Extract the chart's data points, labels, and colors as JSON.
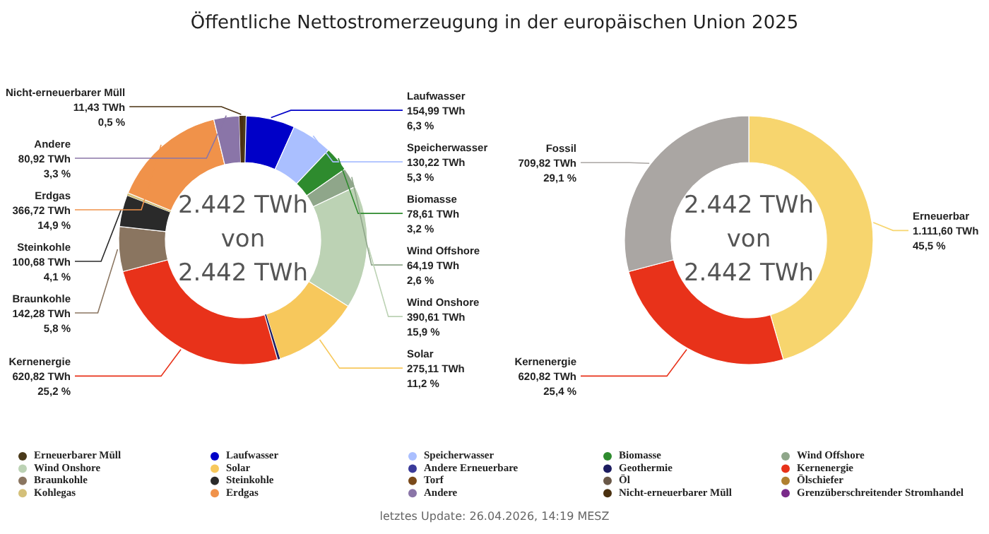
{
  "chart_data": [
    {
      "type": "donut",
      "title": "Öffentliche Nettostromerzeugung in der europäischen Union 2025",
      "categories": [
        "Erneuerbarer Müll",
        "Laufwasser",
        "Speicherwasser",
        "Biomasse",
        "Wind Offshore",
        "Wind Onshore",
        "Solar",
        "Andere Erneuerbare",
        "Geothermie",
        "Kernenergie",
        "Braunkohle",
        "Steinkohle",
        "Torf",
        "Öl",
        "Ölschiefer",
        "Kohlegas",
        "Erdgas",
        "Andere",
        "Nicht-erneuerbarer Müll",
        "Grenzüberschreitender Stromhandel"
      ],
      "values": [
        10,
        154.99,
        130.22,
        78.61,
        64.19,
        390.61,
        275.11,
        null,
        7.9,
        620.82,
        142.28,
        100.68,
        null,
        null,
        null,
        7.8,
        366.72,
        80.92,
        11.43,
        null
      ],
      "colors": [
        "#4a3a1a",
        "#0000c8",
        "#aabfff",
        "#2e8b2e",
        "#8fa68a",
        "#bcd2b4",
        "#f7c85c",
        "#3a3a9a",
        "#1c1c60",
        "#e8321a",
        "#8a7560",
        "#2a2a2a",
        "#7a4a1a",
        "#6a5848",
        "#b08030",
        "#d4c07a",
        "#f0924a",
        "#8a75a8",
        "#4a3010",
        "#7a2a8a"
      ],
      "value_labels": [
        null,
        "154,99 TWh\n6,3 %",
        "130,22 TWh\n5,3 %",
        "78,61 TWh\n3,2 %",
        "64,19 TWh\n2,6 %",
        "390,61 TWh\n15,9 %",
        "275,11 TWh\n11,2 %",
        null,
        null,
        "620,82 TWh\n25,2 %",
        "142,28 TWh\n5,8 %",
        "100,68 TWh\n4,1 %",
        null,
        null,
        null,
        null,
        "366,72 TWh\n14,9 %",
        "80,92 TWh\n3,3 %",
        "11,43 TWh\n0,5 %",
        null
      ],
      "annotations": [
        "2.442 TWh",
        "von",
        "2.442 TWh",
        "letztes Update: 26.04.2026, 14:19 MESZ"
      ],
      "legend": "bottom"
    },
    {
      "type": "donut",
      "categories": [
        "Erneuerbar",
        "Kernenergie",
        "Fossil"
      ],
      "values": [
        1111.6,
        620.82,
        709.82
      ],
      "colors": [
        "#f7d56e",
        "#e8321a",
        "#aaa6a3"
      ],
      "value_labels": [
        "1.111,60 TWh\n45,5 %",
        "620,82 TWh\n25,4 %",
        "709,82 TWh\n29,1 %"
      ],
      "annotations": [
        "2.442 TWh",
        "von",
        "2.442 TWh"
      ]
    }
  ]
}
